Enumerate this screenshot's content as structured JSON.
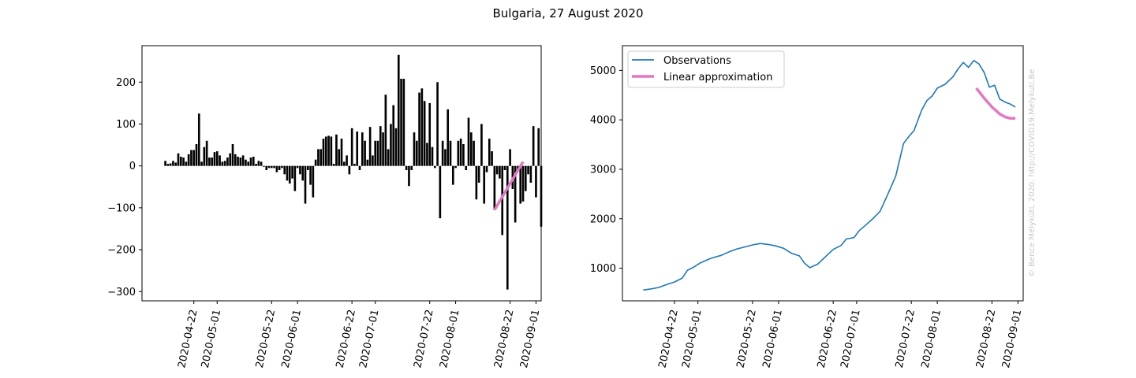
{
  "figure": {
    "title": "Bulgaria, 27 August 2020",
    "credit": "© Bence Mélykúti, 2020. http://COVID19.Melykuti.Be"
  },
  "chart_data": [
    {
      "type": "bar",
      "x_axis": "date",
      "xlim": [
        "2020-04-02",
        "2020-09-03"
      ],
      "ylim": [
        -322,
        287
      ],
      "xticks": [
        "2020-04-22",
        "2020-05-01",
        "2020-05-22",
        "2020-06-01",
        "2020-06-22",
        "2020-07-01",
        "2020-07-22",
        "2020-08-01",
        "2020-08-22",
        "2020-09-01"
      ],
      "yticks": [
        -300,
        -200,
        -100,
        0,
        100,
        200
      ],
      "bar_color": "#1f77b4",
      "bars": {
        "start_date": "2020-04-11",
        "values": [
          12,
          5,
          6,
          12,
          8,
          30,
          22,
          20,
          10,
          28,
          38,
          38,
          52,
          125,
          10,
          45,
          60,
          20,
          20,
          33,
          35,
          25,
          10,
          12,
          20,
          30,
          52,
          28,
          22,
          20,
          25,
          15,
          10,
          20,
          22,
          5,
          12,
          10,
          -2,
          -10,
          -5,
          -5,
          -5,
          -15,
          -10,
          -5,
          -20,
          -35,
          -42,
          -30,
          -60,
          -5,
          -20,
          -35,
          -90,
          -10,
          -45,
          -75,
          15,
          40,
          40,
          65,
          70,
          72,
          70,
          5,
          75,
          40,
          65,
          10,
          25,
          -20,
          90,
          5,
          82,
          -10,
          80,
          60,
          15,
          93,
          25,
          60,
          60,
          95,
          80,
          170,
          40,
          100,
          145,
          90,
          265,
          208,
          208,
          -10,
          -48,
          -10,
          80,
          60,
          175,
          185,
          155,
          55,
          150,
          45,
          -5,
          200,
          -125,
          60,
          40,
          135,
          60,
          -45,
          -5,
          60,
          65,
          52,
          -10,
          115,
          80,
          60,
          -80,
          -40,
          100,
          -90,
          -15,
          65,
          35,
          -105,
          -20,
          -30,
          -165,
          -10,
          -295,
          40,
          -55,
          -135,
          -10,
          -90,
          -85,
          -60,
          -20,
          -40,
          95,
          -75,
          90,
          -145
        ],
        "approximation": {
          "name": "Linear approximation",
          "color": "#e377c2",
          "x": [
            "2020-08-16",
            "2020-08-27"
          ],
          "y": [
            -105,
            10
          ]
        }
      }
    },
    {
      "type": "line",
      "x_axis": "date",
      "xlim": [
        "2020-04-02",
        "2020-09-03"
      ],
      "ylim": [
        340,
        5500
      ],
      "xticks": [
        "2020-04-22",
        "2020-05-01",
        "2020-05-22",
        "2020-06-01",
        "2020-06-22",
        "2020-07-01",
        "2020-07-22",
        "2020-08-01",
        "2020-08-22",
        "2020-09-01"
      ],
      "yticks": [
        1000,
        2000,
        3000,
        4000,
        5000
      ],
      "legend_position": "top-left",
      "series": [
        {
          "name": "Observations",
          "color": "#1f77b4",
          "points": [
            [
              "2020-04-10",
              560
            ],
            [
              "2020-04-13",
              580
            ],
            [
              "2020-04-16",
              610
            ],
            [
              "2020-04-19",
              670
            ],
            [
              "2020-04-22",
              720
            ],
            [
              "2020-04-25",
              800
            ],
            [
              "2020-04-27",
              960
            ],
            [
              "2020-04-29",
              1010
            ],
            [
              "2020-05-02",
              1110
            ],
            [
              "2020-05-06",
              1200
            ],
            [
              "2020-05-10",
              1260
            ],
            [
              "2020-05-13",
              1330
            ],
            [
              "2020-05-16",
              1390
            ],
            [
              "2020-05-19",
              1430
            ],
            [
              "2020-05-22",
              1470
            ],
            [
              "2020-05-25",
              1500
            ],
            [
              "2020-05-28",
              1480
            ],
            [
              "2020-05-31",
              1450
            ],
            [
              "2020-06-03",
              1400
            ],
            [
              "2020-06-06",
              1300
            ],
            [
              "2020-06-09",
              1250
            ],
            [
              "2020-06-11",
              1100
            ],
            [
              "2020-06-13",
              1010
            ],
            [
              "2020-06-16",
              1080
            ],
            [
              "2020-06-19",
              1230
            ],
            [
              "2020-06-22",
              1380
            ],
            [
              "2020-06-25",
              1460
            ],
            [
              "2020-06-27",
              1590
            ],
            [
              "2020-06-30",
              1620
            ],
            [
              "2020-07-02",
              1760
            ],
            [
              "2020-07-04",
              1850
            ],
            [
              "2020-07-07",
              1990
            ],
            [
              "2020-07-10",
              2150
            ],
            [
              "2020-07-13",
              2500
            ],
            [
              "2020-07-16",
              2860
            ],
            [
              "2020-07-19",
              3520
            ],
            [
              "2020-07-21",
              3660
            ],
            [
              "2020-07-23",
              3780
            ],
            [
              "2020-07-26",
              4200
            ],
            [
              "2020-07-28",
              4390
            ],
            [
              "2020-07-30",
              4480
            ],
            [
              "2020-08-01",
              4640
            ],
            [
              "2020-08-04",
              4720
            ],
            [
              "2020-08-07",
              4870
            ],
            [
              "2020-08-09",
              5030
            ],
            [
              "2020-08-11",
              5160
            ],
            [
              "2020-08-13",
              5060
            ],
            [
              "2020-08-15",
              5200
            ],
            [
              "2020-08-17",
              5130
            ],
            [
              "2020-08-19",
              4960
            ],
            [
              "2020-08-21",
              4660
            ],
            [
              "2020-08-23",
              4700
            ],
            [
              "2020-08-25",
              4420
            ],
            [
              "2020-08-27",
              4360
            ],
            [
              "2020-08-29",
              4320
            ],
            [
              "2020-08-31",
              4260
            ]
          ]
        },
        {
          "name": "Linear approximation",
          "color": "#e377c2",
          "points": [
            [
              "2020-08-16",
              4640
            ],
            [
              "2020-08-19",
              4440
            ],
            [
              "2020-08-22",
              4260
            ],
            [
              "2020-08-25",
              4120
            ],
            [
              "2020-08-27",
              4060
            ],
            [
              "2020-08-29",
              4030
            ],
            [
              "2020-08-31",
              4030
            ]
          ]
        }
      ]
    }
  ]
}
